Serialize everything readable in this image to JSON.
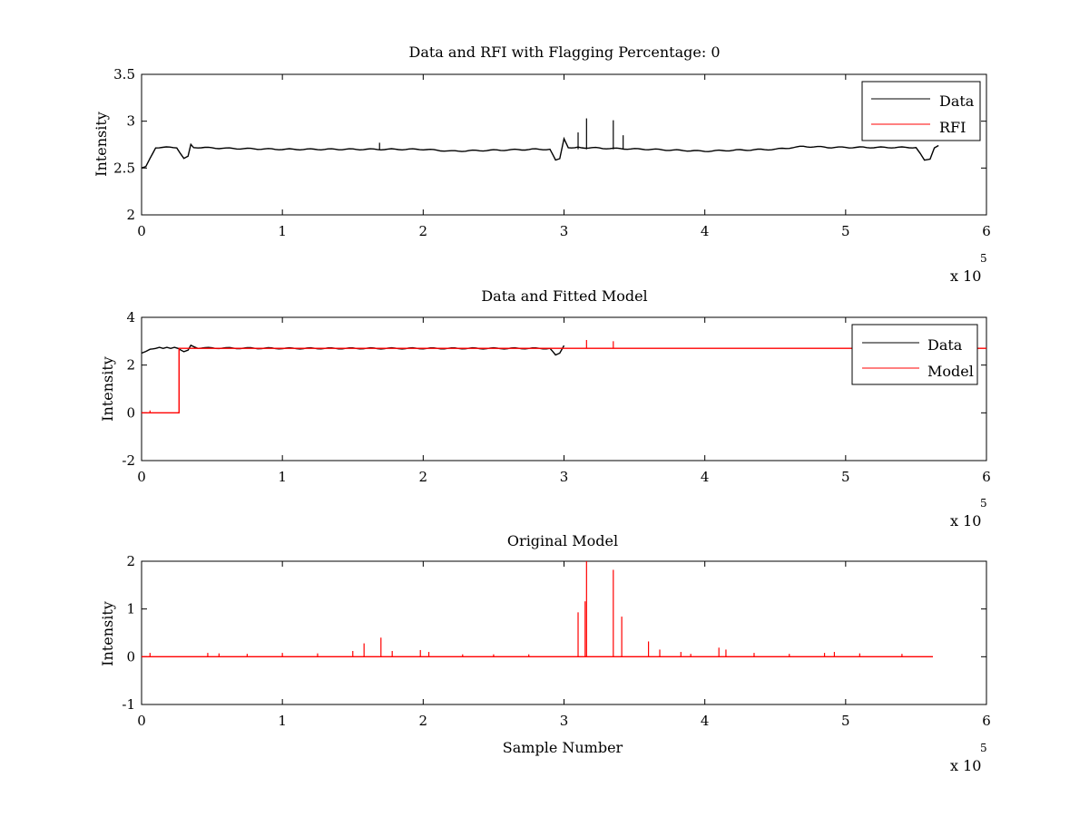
{
  "chart_data": [
    {
      "type": "line",
      "title": "Data and RFI with Flagging Percentage: 0",
      "xlabel": "",
      "ylabel": "Intensity",
      "xlim": [
        0,
        600000
      ],
      "ylim": [
        2,
        3.5
      ],
      "xticks": [
        "0",
        "1",
        "2",
        "3",
        "4",
        "5",
        "6"
      ],
      "yticks": [
        "2",
        "2.5",
        "3",
        "3.5"
      ],
      "x_exponent_label": "x 10",
      "x_exponent_power": "5",
      "legend": {
        "placement": "top-right",
        "entries": [
          "Data",
          "RFI"
        ]
      },
      "series": [
        {
          "name": "Data",
          "color": "#000000",
          "x": [
            0,
            3000,
            6000,
            10000,
            15000,
            25000,
            30000,
            33000,
            35000,
            37000,
            40000,
            60000,
            100000,
            150000,
            200000,
            220000,
            250000,
            280000,
            290000,
            294000,
            297000,
            300000,
            303000,
            310000,
            330000,
            360000,
            380000,
            400000,
            420000,
            450000,
            470000,
            490000,
            520000,
            550000,
            556000,
            560000,
            563000,
            566000
          ],
          "y": [
            2.5,
            2.51,
            2.6,
            2.72,
            2.72,
            2.72,
            2.6,
            2.62,
            2.75,
            2.72,
            2.72,
            2.71,
            2.7,
            2.7,
            2.7,
            2.68,
            2.69,
            2.7,
            2.7,
            2.58,
            2.6,
            2.82,
            2.72,
            2.72,
            2.71,
            2.7,
            2.69,
            2.68,
            2.69,
            2.7,
            2.73,
            2.72,
            2.72,
            2.72,
            2.58,
            2.6,
            2.72,
            2.74
          ],
          "spikes": [
            [
              169000,
              2.77
            ],
            [
              310000,
              2.88
            ],
            [
              316000,
              3.03
            ],
            [
              335000,
              3.01
            ],
            [
              342000,
              2.85
            ]
          ]
        },
        {
          "name": "RFI",
          "color": "#ff0000",
          "x": [],
          "y": []
        }
      ]
    },
    {
      "type": "line",
      "title": "Data and Fitted Model",
      "xlabel": "",
      "ylabel": "Intensity",
      "xlim": [
        0,
        600000
      ],
      "ylim": [
        -2,
        4
      ],
      "xticks": [
        "0",
        "1",
        "2",
        "3",
        "4",
        "5",
        "6"
      ],
      "yticks": [
        "-2",
        "0",
        "2",
        "4"
      ],
      "x_exponent_label": "x 10",
      "x_exponent_power": "5",
      "legend": {
        "placement": "top-right",
        "entries": [
          "Data",
          "Model"
        ]
      },
      "series": [
        {
          "name": "Data",
          "color": "#000000",
          "x": [
            0,
            3000,
            6000,
            10000,
            26000,
            30000,
            33000,
            35000,
            40000,
            100000,
            200000,
            280000,
            290000,
            294000,
            297000,
            300000
          ],
          "y": [
            2.5,
            2.55,
            2.65,
            2.72,
            2.72,
            2.55,
            2.6,
            2.82,
            2.72,
            2.7,
            2.7,
            2.7,
            2.7,
            2.4,
            2.5,
            2.82
          ]
        },
        {
          "name": "Model",
          "color": "#ff0000",
          "x": [
            0,
            26600,
            26600,
            30000,
            100000,
            200000,
            300000,
            400000,
            500000,
            600000
          ],
          "y": [
            0,
            0,
            2.7,
            2.7,
            2.7,
            2.7,
            2.7,
            2.7,
            2.7,
            2.7
          ],
          "spikes": [
            [
              6000,
              0.1
            ],
            [
              316000,
              3.05
            ],
            [
              335000,
              3.0
            ]
          ]
        }
      ]
    },
    {
      "type": "line",
      "title": "Original Model",
      "xlabel": "Sample Number",
      "ylabel": "Intensity",
      "xlim": [
        0,
        600000
      ],
      "ylim": [
        -1,
        2
      ],
      "xticks": [
        "0",
        "1",
        "2",
        "3",
        "4",
        "5",
        "6"
      ],
      "yticks": [
        "-1",
        "0",
        "1",
        "2"
      ],
      "x_exponent_label": "x 10",
      "x_exponent_power": "5",
      "series": [
        {
          "color": "#ff0000",
          "x": [
            0,
            562000
          ],
          "y": [
            0,
            0
          ],
          "spikes": [
            [
              6000,
              0.08
            ],
            [
              47000,
              0.08
            ],
            [
              55000,
              0.07
            ],
            [
              75000,
              0.06
            ],
            [
              100000,
              0.08
            ],
            [
              125000,
              0.07
            ],
            [
              150000,
              0.12
            ],
            [
              158000,
              0.28
            ],
            [
              170000,
              0.4
            ],
            [
              178000,
              0.12
            ],
            [
              198000,
              0.14
            ],
            [
              204000,
              0.1
            ],
            [
              228000,
              0.05
            ],
            [
              250000,
              0.05
            ],
            [
              275000,
              0.05
            ],
            [
              310000,
              0.93
            ],
            [
              315000,
              1.16
            ],
            [
              316000,
              2.0
            ],
            [
              335000,
              1.82
            ],
            [
              341000,
              0.84
            ],
            [
              360000,
              0.32
            ],
            [
              368000,
              0.15
            ],
            [
              383000,
              0.1
            ],
            [
              390000,
              0.06
            ],
            [
              410000,
              0.19
            ],
            [
              415000,
              0.15
            ],
            [
              435000,
              0.08
            ],
            [
              460000,
              0.06
            ],
            [
              485000,
              0.08
            ],
            [
              492000,
              0.1
            ],
            [
              510000,
              0.07
            ],
            [
              540000,
              0.06
            ]
          ]
        }
      ]
    }
  ]
}
